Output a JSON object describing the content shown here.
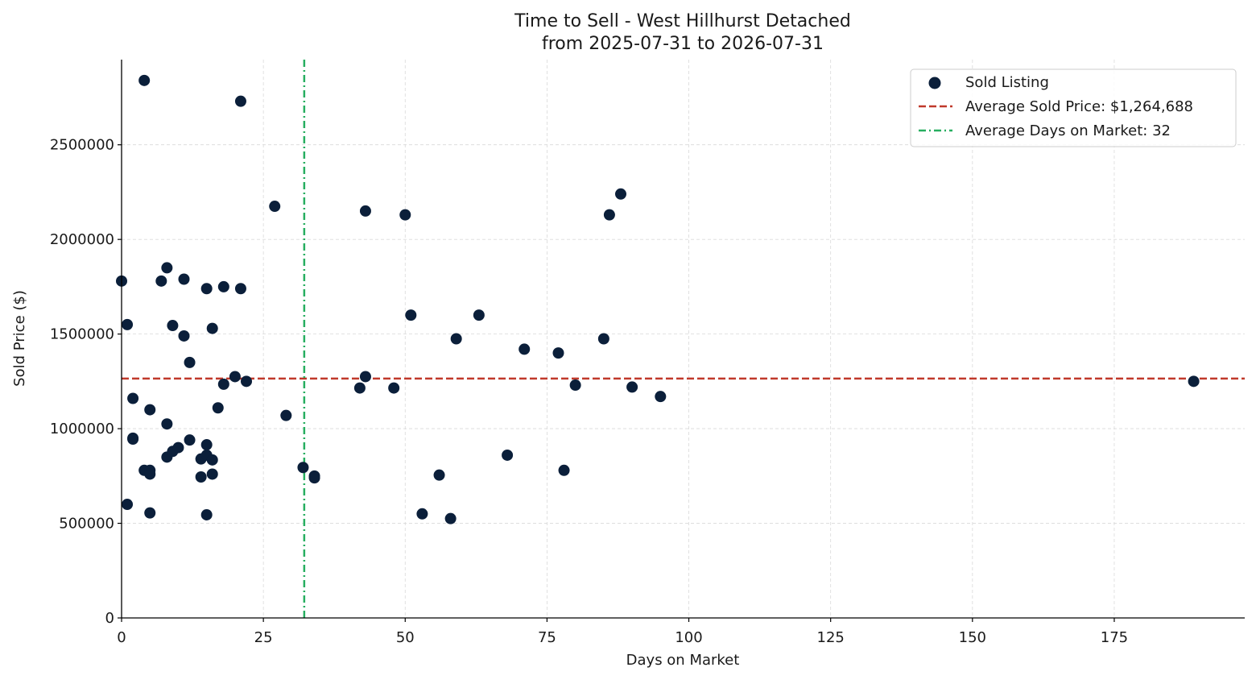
{
  "chart_data": {
    "type": "scatter",
    "title": "Time to Sell - West Hillhurst Detached",
    "subtitle": "from 2025-07-31 to 2026-07-31",
    "xlabel": "Days on Market",
    "ylabel": "Sold Price ($)",
    "xlim": [
      0,
      198
    ],
    "ylim": [
      0,
      2950000
    ],
    "xticks": [
      0,
      25,
      50,
      75,
      100,
      125,
      150,
      175
    ],
    "yticks": [
      0,
      500000,
      1000000,
      1500000,
      2000000,
      2500000
    ],
    "grid": true,
    "legend_position": "top-right",
    "colors": {
      "points": "#0b1f3a",
      "avg_price_line": "#c0392b",
      "avg_days_line": "#27ae60",
      "grid": "#d9d9d9",
      "axis": "#000000"
    },
    "series": [
      {
        "name": "Sold Listing",
        "points": [
          {
            "x": 0,
            "y": 1780000
          },
          {
            "x": 1,
            "y": 1550000
          },
          {
            "x": 1,
            "y": 600000
          },
          {
            "x": 2,
            "y": 1160000
          },
          {
            "x": 2,
            "y": 950000
          },
          {
            "x": 2,
            "y": 945000
          },
          {
            "x": 4,
            "y": 2840000
          },
          {
            "x": 4,
            "y": 780000
          },
          {
            "x": 5,
            "y": 1100000
          },
          {
            "x": 5,
            "y": 780000
          },
          {
            "x": 5,
            "y": 760000
          },
          {
            "x": 5,
            "y": 555000
          },
          {
            "x": 7,
            "y": 1780000
          },
          {
            "x": 8,
            "y": 1850000
          },
          {
            "x": 8,
            "y": 1025000
          },
          {
            "x": 8,
            "y": 850000
          },
          {
            "x": 9,
            "y": 1545000
          },
          {
            "x": 9,
            "y": 880000
          },
          {
            "x": 10,
            "y": 900000
          },
          {
            "x": 11,
            "y": 1790000
          },
          {
            "x": 11,
            "y": 1490000
          },
          {
            "x": 12,
            "y": 1350000
          },
          {
            "x": 12,
            "y": 940000
          },
          {
            "x": 14,
            "y": 840000
          },
          {
            "x": 14,
            "y": 745000
          },
          {
            "x": 15,
            "y": 1740000
          },
          {
            "x": 15,
            "y": 915000
          },
          {
            "x": 15,
            "y": 860000
          },
          {
            "x": 15,
            "y": 545000
          },
          {
            "x": 16,
            "y": 1530000
          },
          {
            "x": 16,
            "y": 835000
          },
          {
            "x": 16,
            "y": 760000
          },
          {
            "x": 17,
            "y": 1110000
          },
          {
            "x": 18,
            "y": 1750000
          },
          {
            "x": 18,
            "y": 1235000
          },
          {
            "x": 20,
            "y": 1275000
          },
          {
            "x": 21,
            "y": 2730000
          },
          {
            "x": 21,
            "y": 1740000
          },
          {
            "x": 22,
            "y": 1250000
          },
          {
            "x": 27,
            "y": 2175000
          },
          {
            "x": 29,
            "y": 1070000
          },
          {
            "x": 32,
            "y": 795000
          },
          {
            "x": 34,
            "y": 750000
          },
          {
            "x": 34,
            "y": 740000
          },
          {
            "x": 42,
            "y": 1215000
          },
          {
            "x": 43,
            "y": 2150000
          },
          {
            "x": 43,
            "y": 1275000
          },
          {
            "x": 48,
            "y": 1215000
          },
          {
            "x": 50,
            "y": 2130000
          },
          {
            "x": 51,
            "y": 1600000
          },
          {
            "x": 53,
            "y": 550000
          },
          {
            "x": 56,
            "y": 755000
          },
          {
            "x": 58,
            "y": 525000
          },
          {
            "x": 59,
            "y": 1475000
          },
          {
            "x": 63,
            "y": 1600000
          },
          {
            "x": 68,
            "y": 860000
          },
          {
            "x": 71,
            "y": 1420000
          },
          {
            "x": 77,
            "y": 1400000
          },
          {
            "x": 78,
            "y": 780000
          },
          {
            "x": 80,
            "y": 1230000
          },
          {
            "x": 85,
            "y": 1475000
          },
          {
            "x": 86,
            "y": 2130000
          },
          {
            "x": 88,
            "y": 2240000
          },
          {
            "x": 90,
            "y": 1220000
          },
          {
            "x": 95,
            "y": 1170000
          },
          {
            "x": 189,
            "y": 1250000
          }
        ]
      }
    ],
    "reference_lines": [
      {
        "name": "Average Sold Price: $1,264,688",
        "orientation": "horizontal",
        "value": 1264688,
        "style": "dashed"
      },
      {
        "name": "Average Days on Market: 32",
        "orientation": "vertical",
        "value": 32.2,
        "style": "dashdot"
      }
    ]
  }
}
